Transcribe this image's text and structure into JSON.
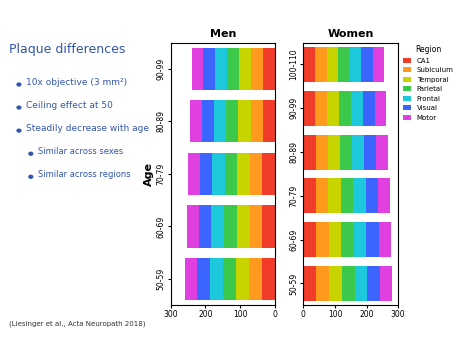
{
  "slide": {
    "title": "Plaque differences",
    "bullets": [
      {
        "text": "10x objective (3 mm²)",
        "level": 1
      },
      {
        "text": "Ceiling effect at 50",
        "level": 1
      },
      {
        "text": "Steadily decrease with age",
        "level": 1
      },
      {
        "text": "Similar across sexes",
        "level": 2
      },
      {
        "text": "Similar across regions",
        "level": 2
      }
    ],
    "citation": "(Liesinger et al., Acta Neuropath 2018)"
  },
  "chart_data": [
    {
      "type": "bar",
      "orientation": "horizontal",
      "stacked": true,
      "title": "Men",
      "y_label": "Age",
      "categories": [
        "50-59",
        "60-69",
        "70-79",
        "80-89",
        "90-99"
      ],
      "xlim": [
        300,
        0
      ],
      "xticks": [
        300,
        200,
        100,
        0
      ],
      "series": [
        {
          "color": "#f03c28",
          "values": [
            38,
            37,
            36,
            35,
            34
          ]
        },
        {
          "color": "#ff9a1f",
          "values": [
            37,
            36,
            36,
            35,
            34
          ]
        },
        {
          "color": "#c8d400",
          "values": [
            38,
            37,
            36,
            36,
            35
          ]
        },
        {
          "color": "#3cc84a",
          "values": [
            37,
            37,
            36,
            35,
            34
          ]
        },
        {
          "color": "#1ec8dc",
          "values": [
            37,
            36,
            36,
            35,
            35
          ]
        },
        {
          "color": "#3c64ff",
          "values": [
            36,
            36,
            35,
            35,
            34
          ]
        },
        {
          "color": "#e040e0",
          "values": [
            36,
            35,
            35,
            34,
            33
          ]
        }
      ]
    },
    {
      "type": "bar",
      "orientation": "horizontal",
      "stacked": true,
      "title": "Women",
      "categories": [
        "50-59",
        "60-69",
        "70-79",
        "80-89",
        "90-99",
        "100-110"
      ],
      "xlim": [
        0,
        300
      ],
      "xticks": [
        0,
        100,
        200,
        300
      ],
      "legend": "right",
      "legend_title": "Region",
      "series": [
        {
          "name": "CA1",
          "color": "#f03c28",
          "values": [
            41,
            40,
            40,
            39,
            38,
            37
          ]
        },
        {
          "name": "Subiculum",
          "color": "#ff9a1f",
          "values": [
            40,
            40,
            39,
            39,
            38,
            37
          ]
        },
        {
          "name": "Temporal",
          "color": "#c8d400",
          "values": [
            41,
            40,
            40,
            39,
            38,
            37
          ]
        },
        {
          "name": "Parietal",
          "color": "#3cc84a",
          "values": [
            40,
            40,
            39,
            38,
            38,
            36
          ]
        },
        {
          "name": "Frontal",
          "color": "#1ec8dc",
          "values": [
            40,
            39,
            39,
            38,
            37,
            36
          ]
        },
        {
          "name": "Visual",
          "color": "#3c64ff",
          "values": [
            40,
            39,
            38,
            38,
            37,
            36
          ]
        },
        {
          "name": "Motor",
          "color": "#e040e0",
          "values": [
            39,
            39,
            38,
            37,
            36,
            35
          ]
        }
      ]
    }
  ]
}
